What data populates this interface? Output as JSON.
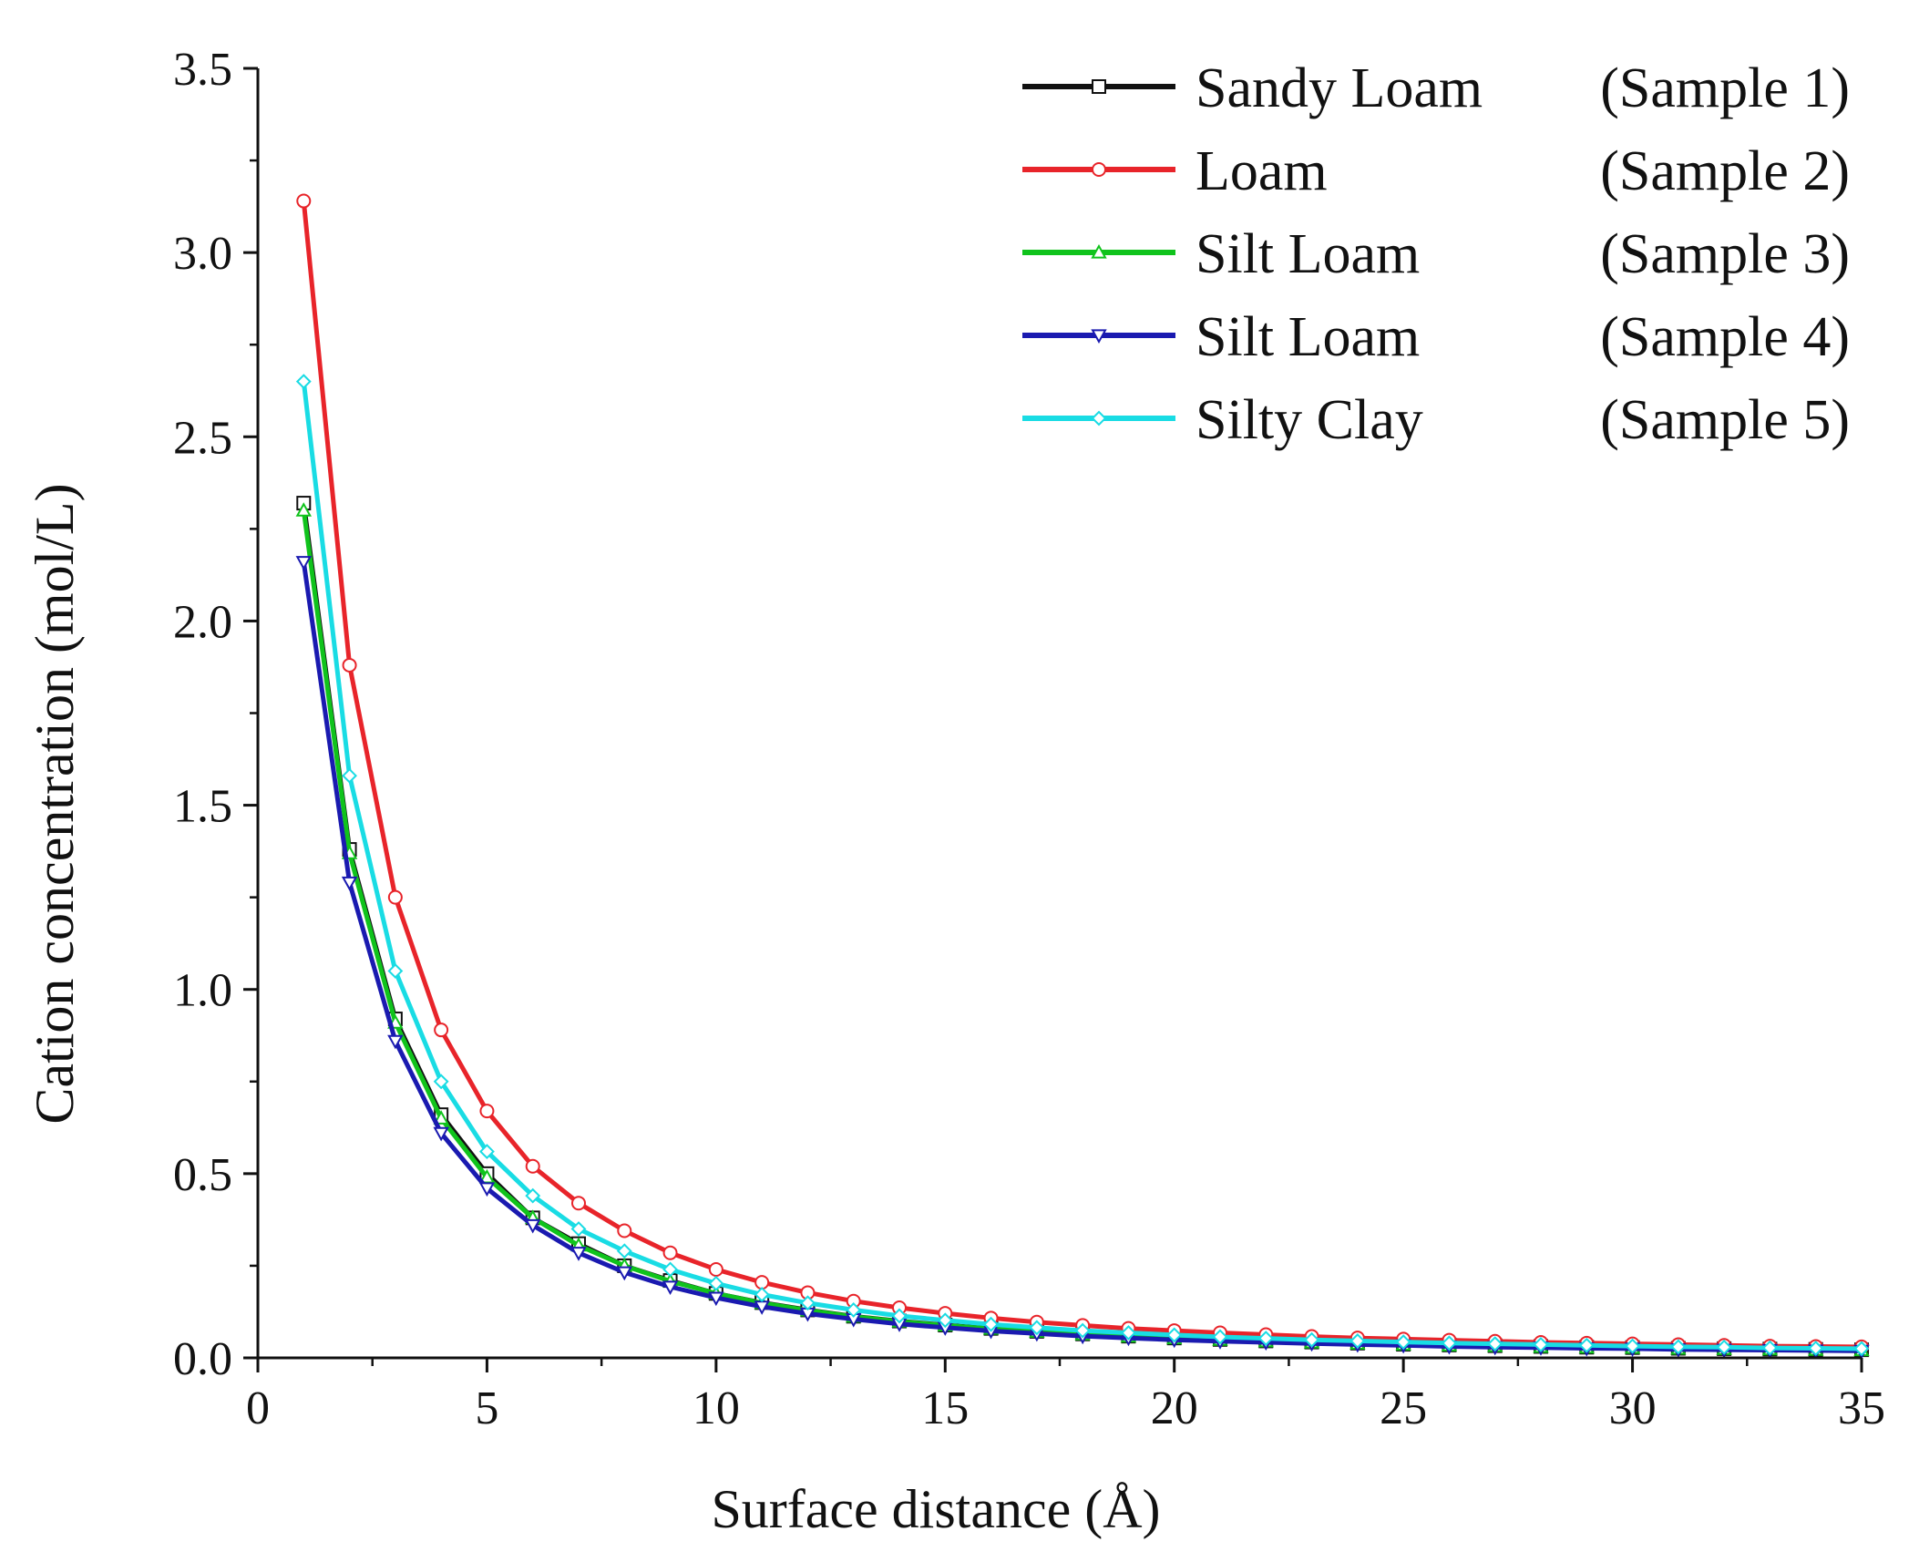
{
  "chart_data": {
    "type": "line",
    "title": "",
    "xlabel": "Surface distance  (Å)",
    "ylabel": "Cation concentration (mol/L)",
    "xlim": [
      0,
      35
    ],
    "ylim": [
      0,
      3.5
    ],
    "xticks": [
      "0",
      "5",
      "10",
      "15",
      "20",
      "25",
      "30",
      "35"
    ],
    "yticks": [
      "0.0",
      "0.5",
      "1.0",
      "1.5",
      "2.0",
      "2.5",
      "3.0",
      "3.5"
    ],
    "x": [
      1,
      2,
      3,
      4,
      5,
      6,
      7,
      8,
      9,
      10,
      11,
      12,
      13,
      14,
      15,
      16,
      17,
      18,
      19,
      20,
      21,
      22,
      23,
      24,
      25,
      26,
      27,
      28,
      29,
      30,
      31,
      32,
      33,
      34,
      35
    ],
    "legend_position": "top-right",
    "series": [
      {
        "name": "Sandy Loam",
        "sample": "(Sample 1)",
        "color": "#111111",
        "marker": "square",
        "values": [
          2.32,
          1.38,
          0.92,
          0.66,
          0.5,
          0.38,
          0.31,
          0.25,
          0.21,
          0.175,
          0.15,
          0.13,
          0.113,
          0.1,
          0.089,
          0.08,
          0.072,
          0.065,
          0.059,
          0.054,
          0.05,
          0.046,
          0.043,
          0.04,
          0.037,
          0.035,
          0.033,
          0.031,
          0.029,
          0.028,
          0.026,
          0.025,
          0.024,
          0.023,
          0.022
        ]
      },
      {
        "name": "Loam",
        "sample": "(Sample 2)",
        "color": "#e8242a",
        "marker": "circle",
        "values": [
          3.14,
          1.88,
          1.25,
          0.89,
          0.67,
          0.52,
          0.42,
          0.345,
          0.285,
          0.24,
          0.205,
          0.177,
          0.154,
          0.136,
          0.121,
          0.108,
          0.097,
          0.088,
          0.08,
          0.074,
          0.068,
          0.063,
          0.058,
          0.054,
          0.051,
          0.048,
          0.045,
          0.042,
          0.04,
          0.038,
          0.036,
          0.034,
          0.032,
          0.031,
          0.03
        ]
      },
      {
        "name": "Silt Loam",
        "sample": "(Sample 3)",
        "color": "#10c31c",
        "marker": "triangle-up",
        "values": [
          2.3,
          1.37,
          0.91,
          0.65,
          0.49,
          0.38,
          0.305,
          0.25,
          0.208,
          0.175,
          0.149,
          0.129,
          0.112,
          0.099,
          0.088,
          0.079,
          0.071,
          0.064,
          0.058,
          0.053,
          0.049,
          0.045,
          0.042,
          0.039,
          0.036,
          0.034,
          0.032,
          0.03,
          0.028,
          0.027,
          0.025,
          0.024,
          0.023,
          0.022,
          0.021
        ]
      },
      {
        "name": "Silt Loam",
        "sample": "(Sample 4)",
        "color": "#1a1ab0",
        "marker": "triangle-down",
        "values": [
          2.16,
          1.29,
          0.86,
          0.61,
          0.46,
          0.36,
          0.285,
          0.232,
          0.193,
          0.163,
          0.139,
          0.12,
          0.105,
          0.092,
          0.082,
          0.073,
          0.066,
          0.059,
          0.054,
          0.049,
          0.045,
          0.042,
          0.039,
          0.036,
          0.034,
          0.031,
          0.029,
          0.028,
          0.026,
          0.025,
          0.023,
          0.022,
          0.021,
          0.02,
          0.019
        ]
      },
      {
        "name": "Silty Clay",
        "sample": "(Sample 5)",
        "color": "#19dce4",
        "marker": "diamond",
        "values": [
          2.65,
          1.58,
          1.05,
          0.75,
          0.56,
          0.44,
          0.35,
          0.29,
          0.24,
          0.202,
          0.172,
          0.149,
          0.13,
          0.114,
          0.102,
          0.091,
          0.082,
          0.074,
          0.068,
          0.062,
          0.057,
          0.053,
          0.049,
          0.046,
          0.043,
          0.04,
          0.038,
          0.036,
          0.034,
          0.032,
          0.03,
          0.029,
          0.027,
          0.026,
          0.025
        ]
      }
    ]
  }
}
